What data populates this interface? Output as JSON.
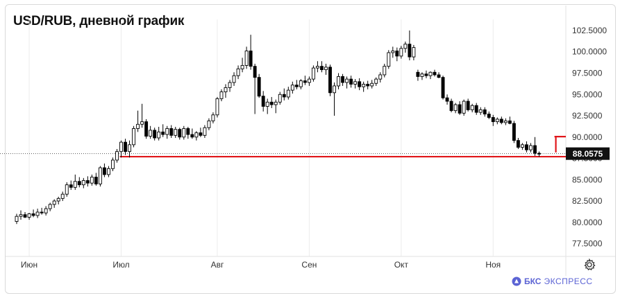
{
  "title": "USD/RUB, дневной график",
  "brand": {
    "bold": "БКС",
    "light": "ЭКСПРЕСС"
  },
  "colors": {
    "candle": "#000000",
    "level": "#e0161a",
    "grid": "#ececec",
    "axis_text": "#333333"
  },
  "icons": {
    "settings": "gear-icon",
    "brand_logo": "bks-logo-icon"
  },
  "chart_data": {
    "type": "candlestick",
    "ylim": [
      76.0,
      103.8
    ],
    "y_ticks": [
      77.5,
      80.0,
      82.5,
      85.0,
      87.5,
      90.0,
      92.5,
      95.0,
      97.5,
      100.0,
      102.5
    ],
    "y_tick_labels": [
      "77.5000",
      "80.0000",
      "82.5000",
      "85.0000",
      "87.5000",
      "90.0000",
      "92.5000",
      "95.0000",
      "97.5000",
      "100.0000",
      "102.5000"
    ],
    "x_labels": [
      {
        "label": "Июн",
        "index": 3
      },
      {
        "label": "Июл",
        "index": 25
      },
      {
        "label": "Авг",
        "index": 48
      },
      {
        "label": "Сен",
        "index": 70
      },
      {
        "label": "Окт",
        "index": 92
      },
      {
        "label": "Ноя",
        "index": 114
      }
    ],
    "last_price": 88.0575,
    "last_price_label": "88.0575",
    "levels": [
      {
        "value": 87.7,
        "from_index": 25,
        "color": "#e0161a"
      },
      {
        "value": 90.05,
        "from_index": 129,
        "color": "#e0161a"
      }
    ],
    "ohlc": [
      [
        80.1,
        81.0,
        79.8,
        80.7
      ],
      [
        80.7,
        81.4,
        80.3,
        80.9
      ],
      [
        80.9,
        81.2,
        80.5,
        80.6
      ],
      [
        80.6,
        81.1,
        80.3,
        81.0
      ],
      [
        81.0,
        81.5,
        80.6,
        80.8
      ],
      [
        80.8,
        81.6,
        80.5,
        81.2
      ],
      [
        81.2,
        81.7,
        80.9,
        81.1
      ],
      [
        81.1,
        81.9,
        80.8,
        81.6
      ],
      [
        81.6,
        82.3,
        81.3,
        82.1
      ],
      [
        82.1,
        82.7,
        81.7,
        82.5
      ],
      [
        82.5,
        83.0,
        82.1,
        82.8
      ],
      [
        82.8,
        83.6,
        82.5,
        83.3
      ],
      [
        83.3,
        84.7,
        83.0,
        84.4
      ],
      [
        84.4,
        84.9,
        83.8,
        84.1
      ],
      [
        84.1,
        85.6,
        83.8,
        84.8
      ],
      [
        84.8,
        85.3,
        84.1,
        84.4
      ],
      [
        84.4,
        85.2,
        84.0,
        84.9
      ],
      [
        84.9,
        85.4,
        84.2,
        84.6
      ],
      [
        84.6,
        85.6,
        84.3,
        85.3
      ],
      [
        85.3,
        85.8,
        84.3,
        84.5
      ],
      [
        84.5,
        86.6,
        84.2,
        86.4
      ],
      [
        86.4,
        86.9,
        85.3,
        85.6
      ],
      [
        85.6,
        86.6,
        85.3,
        86.3
      ],
      [
        86.3,
        87.6,
        86.0,
        87.3
      ],
      [
        87.3,
        88.6,
        87.0,
        88.3
      ],
      [
        88.3,
        89.6,
        87.6,
        89.4
      ],
      [
        89.4,
        89.8,
        87.9,
        88.3
      ],
      [
        88.3,
        89.6,
        87.6,
        89.1
      ],
      [
        89.1,
        91.3,
        88.8,
        91.0
      ],
      [
        91.0,
        93.1,
        90.6,
        91.5
      ],
      [
        91.5,
        93.9,
        91.1,
        91.8
      ],
      [
        91.8,
        92.1,
        89.8,
        90.1
      ],
      [
        90.1,
        91.3,
        89.8,
        90.8
      ],
      [
        90.8,
        91.1,
        89.6,
        89.9
      ],
      [
        89.9,
        91.2,
        89.6,
        90.6
      ],
      [
        90.6,
        91.5,
        90.0,
        90.3
      ],
      [
        90.3,
        91.3,
        89.8,
        91.0
      ],
      [
        91.0,
        91.4,
        89.9,
        90.2
      ],
      [
        90.2,
        91.2,
        89.9,
        90.9
      ],
      [
        90.9,
        91.1,
        89.7,
        90.0
      ],
      [
        90.0,
        91.3,
        89.7,
        91.0
      ],
      [
        91.0,
        91.2,
        89.8,
        90.3
      ],
      [
        90.3,
        91.0,
        89.8,
        90.0
      ],
      [
        90.0,
        90.7,
        89.6,
        90.5
      ],
      [
        90.5,
        91.1,
        90.0,
        90.2
      ],
      [
        90.2,
        91.4,
        89.9,
        91.1
      ],
      [
        91.1,
        92.2,
        90.8,
        91.9
      ],
      [
        91.9,
        92.9,
        91.6,
        92.6
      ],
      [
        92.6,
        94.7,
        92.3,
        94.5
      ],
      [
        94.5,
        95.6,
        94.2,
        95.3
      ],
      [
        95.3,
        96.2,
        94.6,
        95.8
      ],
      [
        95.8,
        96.7,
        95.3,
        96.4
      ],
      [
        96.4,
        97.6,
        96.0,
        97.2
      ],
      [
        97.2,
        98.4,
        96.8,
        98.0
      ],
      [
        98.0,
        99.3,
        97.6,
        98.4
      ],
      [
        98.4,
        100.6,
        98.0,
        100.1
      ],
      [
        100.1,
        102.0,
        97.9,
        98.3
      ],
      [
        98.3,
        98.6,
        92.7,
        97.0
      ],
      [
        97.0,
        97.4,
        94.6,
        94.8
      ],
      [
        94.8,
        95.4,
        93.0,
        93.6
      ],
      [
        93.6,
        94.5,
        92.7,
        94.1
      ],
      [
        94.1,
        94.7,
        93.4,
        93.8
      ],
      [
        93.8,
        94.4,
        92.8,
        94.1
      ],
      [
        94.1,
        95.3,
        93.8,
        95.0
      ],
      [
        95.0,
        95.7,
        94.3,
        94.7
      ],
      [
        94.7,
        95.9,
        94.4,
        95.5
      ],
      [
        95.5,
        96.5,
        95.1,
        96.1
      ],
      [
        96.1,
        96.7,
        95.6,
        95.9
      ],
      [
        95.9,
        96.8,
        95.6,
        96.6
      ],
      [
        96.6,
        97.2,
        96.1,
        96.4
      ],
      [
        96.4,
        97.1,
        96.0,
        96.8
      ],
      [
        96.8,
        98.4,
        96.5,
        98.1
      ],
      [
        98.1,
        98.9,
        97.6,
        98.3
      ],
      [
        98.3,
        98.9,
        97.6,
        97.9
      ],
      [
        97.9,
        98.6,
        97.3,
        98.2
      ],
      [
        98.2,
        98.5,
        94.8,
        95.2
      ],
      [
        95.2,
        96.4,
        92.5,
        96.0
      ],
      [
        96.0,
        97.5,
        95.6,
        97.1
      ],
      [
        97.1,
        97.4,
        96.0,
        96.4
      ],
      [
        96.4,
        97.1,
        95.7,
        96.8
      ],
      [
        96.8,
        97.2,
        95.8,
        96.2
      ],
      [
        96.2,
        96.8,
        95.7,
        96.5
      ],
      [
        96.5,
        96.9,
        95.5,
        95.9
      ],
      [
        95.9,
        96.5,
        95.3,
        96.2
      ],
      [
        96.2,
        96.6,
        95.6,
        96.0
      ],
      [
        96.0,
        96.7,
        95.7,
        96.3
      ],
      [
        96.3,
        97.0,
        96.0,
        96.8
      ],
      [
        96.8,
        97.6,
        96.4,
        97.3
      ],
      [
        97.3,
        98.6,
        97.0,
        98.3
      ],
      [
        98.3,
        100.2,
        98.0,
        99.9
      ],
      [
        99.9,
        100.6,
        99.3,
        100.1
      ],
      [
        100.1,
        100.5,
        98.9,
        99.5
      ],
      [
        99.5,
        100.7,
        99.2,
        100.4
      ],
      [
        100.4,
        101.2,
        99.9,
        100.9
      ],
      [
        100.9,
        102.5,
        99.0,
        99.4
      ],
      [
        99.4,
        100.8,
        99.0,
        100.5
      ],
      [
        97.6,
        97.9,
        96.6,
        97.1
      ],
      [
        97.1,
        97.6,
        96.7,
        97.4
      ],
      [
        97.4,
        97.8,
        96.9,
        97.2
      ],
      [
        97.2,
        97.7,
        96.8,
        97.6
      ],
      [
        97.6,
        97.9,
        97.1,
        97.3
      ],
      [
        97.3,
        97.6,
        96.9,
        97.0
      ],
      [
        97.0,
        97.2,
        94.4,
        94.6
      ],
      [
        94.6,
        95.0,
        93.8,
        94.2
      ],
      [
        94.2,
        94.5,
        92.9,
        93.1
      ],
      [
        93.1,
        94.0,
        92.8,
        93.8
      ],
      [
        93.8,
        94.2,
        92.6,
        92.8
      ],
      [
        92.8,
        94.4,
        92.5,
        94.2
      ],
      [
        94.2,
        94.5,
        93.0,
        93.2
      ],
      [
        93.2,
        93.9,
        92.9,
        93.7
      ],
      [
        93.7,
        94.0,
        92.6,
        92.9
      ],
      [
        92.9,
        93.5,
        92.6,
        93.2
      ],
      [
        93.2,
        93.5,
        92.4,
        92.7
      ],
      [
        92.7,
        93.0,
        92.1,
        92.3
      ],
      [
        92.3,
        92.6,
        91.3,
        91.8
      ],
      [
        91.8,
        92.3,
        91.5,
        92.1
      ],
      [
        92.1,
        92.4,
        91.5,
        91.7
      ],
      [
        91.7,
        92.2,
        91.4,
        91.9
      ],
      [
        91.9,
        92.4,
        91.5,
        91.6
      ],
      [
        91.6,
        91.9,
        89.3,
        89.6
      ],
      [
        89.6,
        89.9,
        88.6,
        88.8
      ],
      [
        88.8,
        89.3,
        88.5,
        89.1
      ],
      [
        89.1,
        89.5,
        88.2,
        88.5
      ],
      [
        88.5,
        89.3,
        88.2,
        89.0
      ],
      [
        89.0,
        90.0,
        87.8,
        88.1
      ],
      [
        88.1,
        88.3,
        87.7,
        88.0
      ]
    ]
  }
}
